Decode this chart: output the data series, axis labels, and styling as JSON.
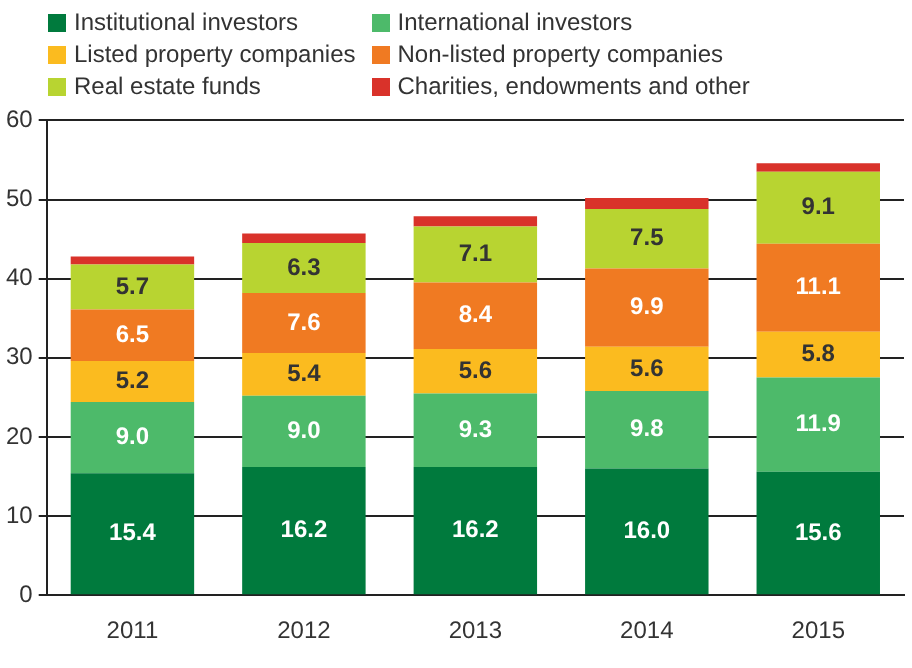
{
  "chart_data": {
    "type": "bar",
    "stacked": true,
    "categories": [
      "2011",
      "2012",
      "2013",
      "2014",
      "2015"
    ],
    "ylim": [
      0,
      60
    ],
    "yticks": [
      0,
      10,
      20,
      30,
      40,
      50,
      60
    ],
    "grid": "y",
    "legend": "top left",
    "series": [
      {
        "name": "Institutional investors",
        "color": "#007a3d",
        "values": [
          15.4,
          16.2,
          16.2,
          16.0,
          15.6
        ],
        "value_labels": [
          "15.4",
          "16.2",
          "16.2",
          "16.0",
          "15.6"
        ]
      },
      {
        "name": "International investors",
        "color": "#4dba6a",
        "values": [
          9.0,
          9.0,
          9.3,
          9.8,
          11.9
        ],
        "value_labels": [
          "9.0",
          "9.0",
          "9.3",
          "9.8",
          "11.9"
        ]
      },
      {
        "name": "Listed property companies",
        "color": "#fbbb1f",
        "values": [
          5.2,
          5.4,
          5.6,
          5.6,
          5.8
        ],
        "value_labels": [
          "5.2",
          "5.4",
          "5.6",
          "5.6",
          "5.8"
        ]
      },
      {
        "name": "Non-listed property companies",
        "color": "#f07a22",
        "values": [
          6.5,
          7.6,
          8.4,
          9.9,
          11.1
        ],
        "value_labels": [
          "6.5",
          "7.6",
          "8.4",
          "9.9",
          "11.1"
        ]
      },
      {
        "name": "Real estate funds",
        "color": "#b8d431",
        "values": [
          5.7,
          6.3,
          7.1,
          7.5,
          9.1
        ],
        "value_labels": [
          "5.7",
          "6.3",
          "7.1",
          "7.5",
          "9.1"
        ]
      },
      {
        "name": "Charities, endowments and other",
        "color": "#d9322a",
        "values": [
          1.0,
          1.2,
          1.3,
          1.4,
          1.1
        ]
      }
    ]
  }
}
